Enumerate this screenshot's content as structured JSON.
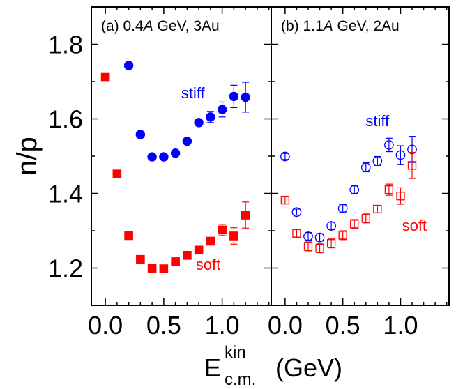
{
  "chart_data": [
    {
      "type": "scatter",
      "title": "(a) 0.4A GeV, 3Au",
      "title_parts": {
        "label": "(a) 0.4",
        "italic": "A",
        "rest": " GeV, 3Au"
      },
      "ylabel": "n/p",
      "xlabel": "E c.m. kin (GeV)",
      "xlabel_parts": {
        "main": "E",
        "sup": "kin",
        "sub": "c.m.",
        "unit": "(GeV)"
      },
      "xlim": [
        -0.12,
        1.42
      ],
      "ylim": [
        1.1,
        1.9
      ],
      "xticks": [
        0.0,
        0.5,
        1.0
      ],
      "xtick_labels": [
        "0.0",
        "0.5",
        "1.0"
      ],
      "yticks": [
        1.2,
        1.4,
        1.6,
        1.8
      ],
      "ytick_labels": [
        "1.2",
        "1.4",
        "1.6",
        "1.8"
      ],
      "series": [
        {
          "name": "stiff",
          "color": "#0000ff",
          "marker": "filled-circle",
          "label_at": [
            0.75,
            1.655
          ],
          "points": [
            {
              "x": 0.2,
              "y": 1.743,
              "err": 0
            },
            {
              "x": 0.3,
              "y": 1.558,
              "err": 0
            },
            {
              "x": 0.4,
              "y": 1.498,
              "err": 0
            },
            {
              "x": 0.5,
              "y": 1.498,
              "err": 0
            },
            {
              "x": 0.6,
              "y": 1.508,
              "err": 0
            },
            {
              "x": 0.7,
              "y": 1.54,
              "err": 0
            },
            {
              "x": 0.8,
              "y": 1.59,
              "err": 0
            },
            {
              "x": 0.9,
              "y": 1.605,
              "err": 0.015
            },
            {
              "x": 1.0,
              "y": 1.625,
              "err": 0.02
            },
            {
              "x": 1.1,
              "y": 1.66,
              "err": 0.03
            },
            {
              "x": 1.2,
              "y": 1.658,
              "err": 0.04
            }
          ]
        },
        {
          "name": "soft",
          "color": "#ff0000",
          "marker": "filled-square",
          "label_at": [
            0.88,
            1.195
          ],
          "points": [
            {
              "x": 0.0,
              "y": 1.713,
              "err": 0.008
            },
            {
              "x": 0.1,
              "y": 1.452,
              "err": 0
            },
            {
              "x": 0.2,
              "y": 1.287,
              "err": 0
            },
            {
              "x": 0.3,
              "y": 1.223,
              "err": 0
            },
            {
              "x": 0.4,
              "y": 1.199,
              "err": 0
            },
            {
              "x": 0.5,
              "y": 1.198,
              "err": 0
            },
            {
              "x": 0.6,
              "y": 1.217,
              "err": 0
            },
            {
              "x": 0.7,
              "y": 1.234,
              "err": 0
            },
            {
              "x": 0.8,
              "y": 1.248,
              "err": 0
            },
            {
              "x": 0.9,
              "y": 1.272,
              "err": 0.01
            },
            {
              "x": 1.0,
              "y": 1.302,
              "err": 0.015
            },
            {
              "x": 1.1,
              "y": 1.286,
              "err": 0.022
            },
            {
              "x": 1.2,
              "y": 1.342,
              "err": 0.035
            }
          ]
        }
      ]
    },
    {
      "type": "scatter",
      "title": "(b) 1.1A GeV, 2Au",
      "title_parts": {
        "label": "(b) 1.1",
        "italic": "A",
        "rest": " GeV, 2Au"
      },
      "xlim": [
        -0.12,
        1.42
      ],
      "ylim": [
        1.1,
        1.9
      ],
      "xticks": [
        0.0,
        0.5,
        1.0
      ],
      "xtick_labels": [
        "0.0",
        "0.5",
        "1.0"
      ],
      "yticks": [
        1.2,
        1.4,
        1.6,
        1.8
      ],
      "series": [
        {
          "name": "stiff",
          "color": "#0000ff",
          "marker": "open-circle",
          "label_at": [
            0.8,
            1.58
          ],
          "points": [
            {
              "x": 0.0,
              "y": 1.499,
              "err": 0.008
            },
            {
              "x": 0.1,
              "y": 1.35,
              "err": 0.008
            },
            {
              "x": 0.2,
              "y": 1.285,
              "err": 0.01
            },
            {
              "x": 0.3,
              "y": 1.282,
              "err": 0.01
            },
            {
              "x": 0.4,
              "y": 1.313,
              "err": 0.01
            },
            {
              "x": 0.5,
              "y": 1.36,
              "err": 0.01
            },
            {
              "x": 0.6,
              "y": 1.41,
              "err": 0.01
            },
            {
              "x": 0.7,
              "y": 1.47,
              "err": 0.012
            },
            {
              "x": 0.8,
              "y": 1.487,
              "err": 0.012
            },
            {
              "x": 0.9,
              "y": 1.53,
              "err": 0.018
            },
            {
              "x": 1.0,
              "y": 1.503,
              "err": 0.025
            },
            {
              "x": 1.1,
              "y": 1.518,
              "err": 0.035
            }
          ]
        },
        {
          "name": "soft",
          "color": "#ff0000",
          "marker": "open-square",
          "label_at": [
            1.12,
            1.3
          ],
          "points": [
            {
              "x": 0.0,
              "y": 1.382,
              "err": 0.01
            },
            {
              "x": 0.1,
              "y": 1.293,
              "err": 0.01
            },
            {
              "x": 0.2,
              "y": 1.258,
              "err": 0.012
            },
            {
              "x": 0.3,
              "y": 1.253,
              "err": 0.012
            },
            {
              "x": 0.4,
              "y": 1.266,
              "err": 0.012
            },
            {
              "x": 0.5,
              "y": 1.288,
              "err": 0.012
            },
            {
              "x": 0.6,
              "y": 1.318,
              "err": 0.012
            },
            {
              "x": 0.7,
              "y": 1.333,
              "err": 0.012
            },
            {
              "x": 0.8,
              "y": 1.358,
              "err": 0.01
            },
            {
              "x": 0.9,
              "y": 1.41,
              "err": 0.015
            },
            {
              "x": 1.0,
              "y": 1.393,
              "err": 0.022
            },
            {
              "x": 1.1,
              "y": 1.475,
              "err": 0.035
            }
          ]
        }
      ]
    }
  ]
}
